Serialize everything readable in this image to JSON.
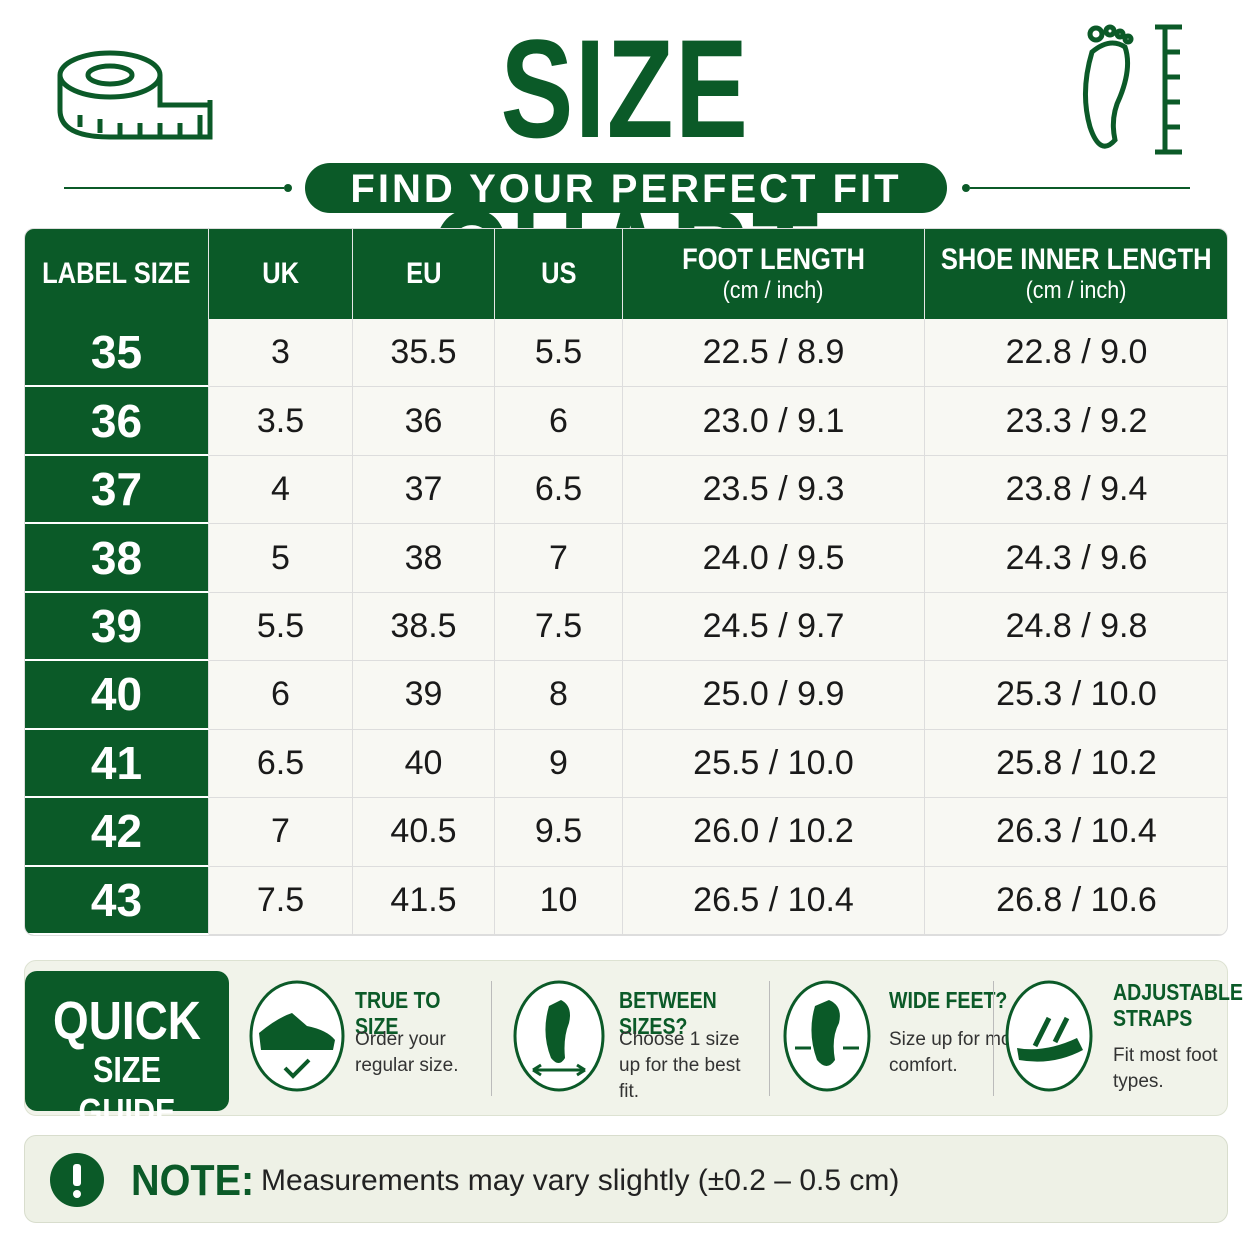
{
  "header": {
    "title": "SIZE CHART",
    "subtitle": "FIND YOUR PERFECT FIT"
  },
  "table": {
    "columns": [
      {
        "label": "LABEL SIZE"
      },
      {
        "label": "UK"
      },
      {
        "label": "EU"
      },
      {
        "label": "US"
      },
      {
        "label": "FOOT LENGTH",
        "unit": "(cm / inch)"
      },
      {
        "label": "SHOE INNER LENGTH",
        "unit": "(cm / inch)"
      }
    ],
    "rows": [
      [
        "35",
        "3",
        "35.5",
        "5.5",
        "22.5 / 8.9",
        "22.8 / 9.0"
      ],
      [
        "36",
        "3.5",
        "36",
        "6",
        "23.0 / 9.1",
        "23.3 / 9.2"
      ],
      [
        "37",
        "4",
        "37",
        "6.5",
        "23.5 / 9.3",
        "23.8 / 9.4"
      ],
      [
        "38",
        "5",
        "38",
        "7",
        "24.0 / 9.5",
        "24.3 / 9.6"
      ],
      [
        "39",
        "5.5",
        "38.5",
        "7.5",
        "24.5 / 9.7",
        "24.8 / 9.8"
      ],
      [
        "40",
        "6",
        "39",
        "8",
        "25.0 / 9.9",
        "25.3 / 10.0"
      ],
      [
        "41",
        "6.5",
        "40",
        "9",
        "25.5 / 10.0",
        "25.8 / 10.2"
      ],
      [
        "42",
        "7",
        "40.5",
        "9.5",
        "26.0 / 10.2",
        "26.3 / 10.4"
      ],
      [
        "43",
        "7.5",
        "41.5",
        "10",
        "26.5 / 10.4",
        "26.8 / 10.6"
      ]
    ]
  },
  "guide": {
    "title": [
      "QUICK",
      "SIZE GUIDE"
    ],
    "tips": [
      {
        "title": "TRUE TO SIZE",
        "text": "Order your regular size."
      },
      {
        "title": "BETWEEN SIZES?",
        "text": "Choose 1 size up for the best fit."
      },
      {
        "title": "WIDE FEET?",
        "text": "Size up for more comfort."
      },
      {
        "title": "ADJUSTABLE STRAPS",
        "text": "Fit most foot types."
      }
    ]
  },
  "note": {
    "label": "NOTE:",
    "text": "Measurements may vary slightly (±0.2 – 0.5 cm)"
  }
}
